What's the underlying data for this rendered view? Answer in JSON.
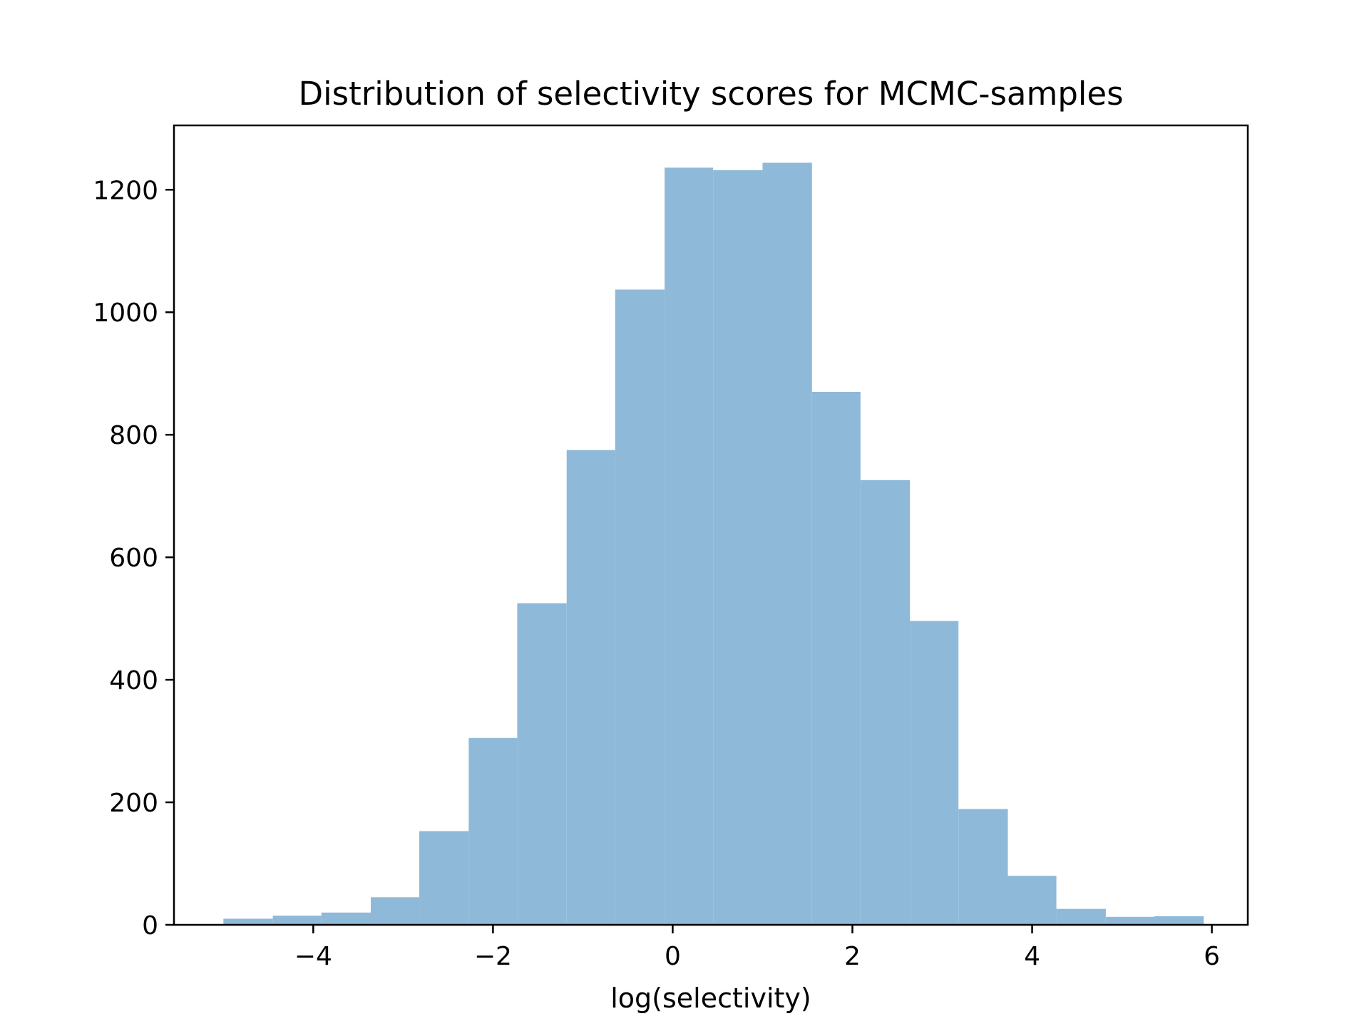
{
  "chart_data": {
    "type": "bar",
    "title": "Distribution of selectivity scores for MCMC-samples",
    "xlabel": "log(selectivity)",
    "ylabel": "",
    "xlim": [
      -5.55,
      6.4
    ],
    "ylim": [
      0,
      1305
    ],
    "xticks": [
      -4,
      -2,
      0,
      2,
      4,
      6
    ],
    "xtick_labels": [
      "−4",
      "−2",
      "0",
      "2",
      "4",
      "6"
    ],
    "yticks": [
      0,
      200,
      400,
      600,
      800,
      1000,
      1200
    ],
    "ytick_labels": [
      "0",
      "200",
      "400",
      "600",
      "800",
      "1000",
      "1200"
    ],
    "grid": false,
    "bar_color": "#8fb9d9",
    "bins": [
      {
        "x0": -5.0,
        "x1": -4.45,
        "count": 10
      },
      {
        "x0": -4.45,
        "x1": -3.91,
        "count": 15
      },
      {
        "x0": -3.91,
        "x1": -3.36,
        "count": 20
      },
      {
        "x0": -3.36,
        "x1": -2.82,
        "count": 45
      },
      {
        "x0": -2.82,
        "x1": -2.27,
        "count": 153
      },
      {
        "x0": -2.27,
        "x1": -1.73,
        "count": 305
      },
      {
        "x0": -1.73,
        "x1": -1.18,
        "count": 525
      },
      {
        "x0": -1.18,
        "x1": -0.64,
        "count": 775
      },
      {
        "x0": -0.64,
        "x1": -0.09,
        "count": 1037
      },
      {
        "x0": -0.09,
        "x1": 0.45,
        "count": 1236
      },
      {
        "x0": 0.45,
        "x1": 1.0,
        "count": 1232
      },
      {
        "x0": 1.0,
        "x1": 1.55,
        "count": 1244
      },
      {
        "x0": 1.55,
        "x1": 2.09,
        "count": 870
      },
      {
        "x0": 2.09,
        "x1": 2.64,
        "count": 726
      },
      {
        "x0": 2.64,
        "x1": 3.18,
        "count": 496
      },
      {
        "x0": 3.18,
        "x1": 3.73,
        "count": 189
      },
      {
        "x0": 3.73,
        "x1": 4.27,
        "count": 80
      },
      {
        "x0": 4.27,
        "x1": 4.82,
        "count": 26
      },
      {
        "x0": 4.82,
        "x1": 5.36,
        "count": 13
      },
      {
        "x0": 5.36,
        "x1": 5.91,
        "count": 14
      }
    ]
  }
}
